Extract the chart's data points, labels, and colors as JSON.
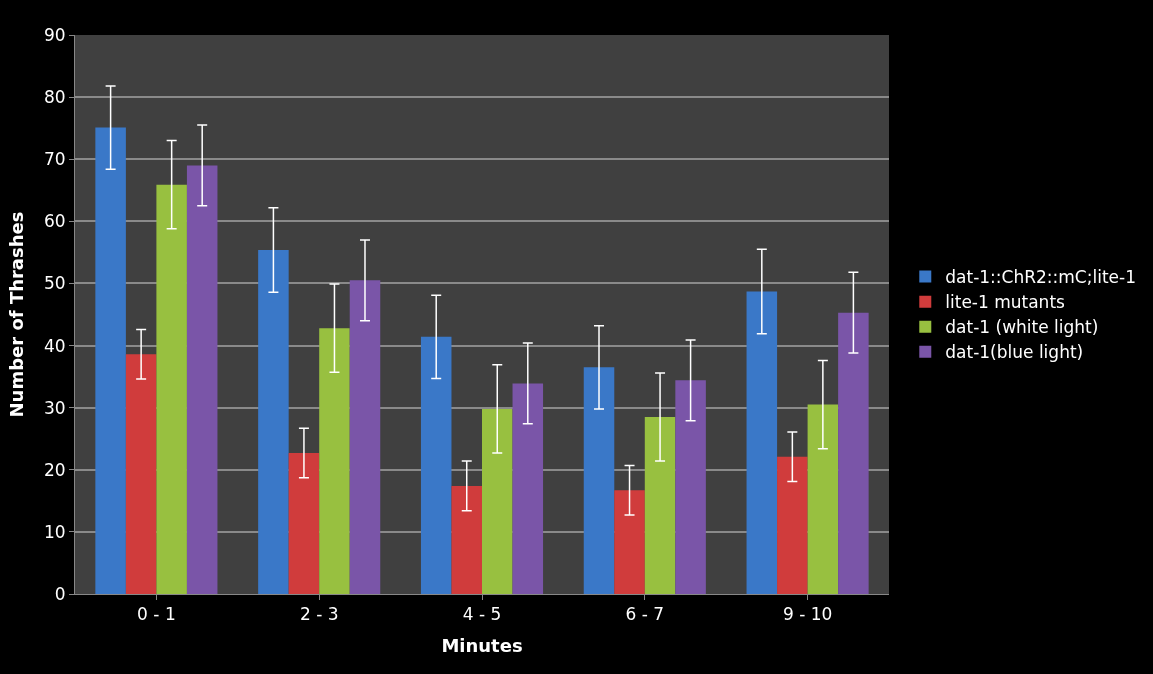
{
  "chart_data": {
    "type": "bar",
    "xlabel": "Minutes",
    "ylabel": "Number of Thrashes",
    "categories": [
      "0 - 1",
      "2 - 3",
      "4 - 5",
      "6 - 7",
      "9 - 10"
    ],
    "series": [
      {
        "name": "dat-1::ChR2::mC;lite-1",
        "color": "#3a78c8",
        "values": [
          75.1,
          55.4,
          41.4,
          36.5,
          48.7
        ],
        "errors": [
          6.7,
          6.8,
          6.7,
          6.7,
          6.8
        ]
      },
      {
        "name": "lite-1 mutants",
        "color": "#d03c3c",
        "values": [
          38.6,
          22.7,
          17.4,
          16.7,
          22.1
        ],
        "errors": [
          4,
          4,
          4,
          4,
          4
        ]
      },
      {
        "name": "dat-1 (white light)",
        "color": "#98c040",
        "values": [
          65.9,
          42.8,
          29.8,
          28.5,
          30.5
        ],
        "errors": [
          7.1,
          7.1,
          7.1,
          7.1,
          7.1
        ]
      },
      {
        "name": "dat-1(blue light)",
        "color": "#7a55a8",
        "values": [
          69.0,
          50.5,
          33.9,
          34.4,
          45.3
        ],
        "errors": [
          6.5,
          6.5,
          6.5,
          6.5,
          6.5
        ]
      }
    ],
    "ylim": [
      0,
      90
    ],
    "yticks": [
      0,
      10,
      20,
      30,
      40,
      50,
      60,
      70,
      80,
      90
    ],
    "grid": "y",
    "legend": "right"
  }
}
